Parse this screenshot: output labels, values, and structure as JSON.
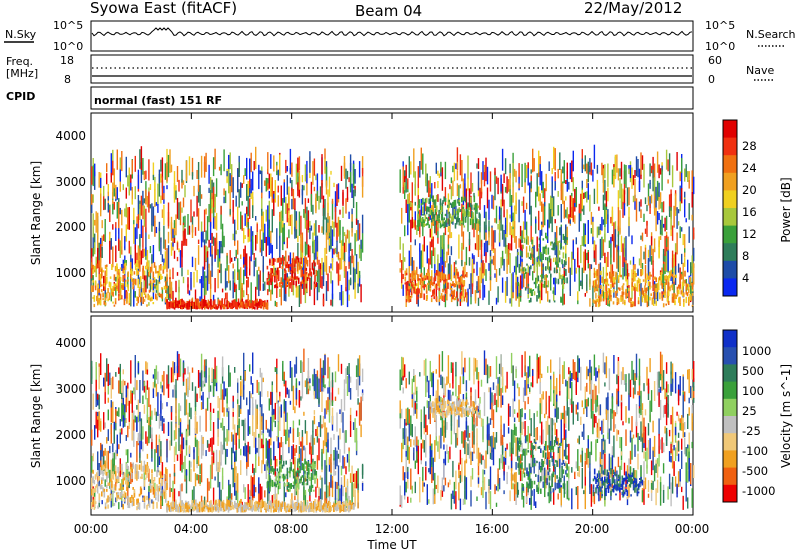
{
  "header": {
    "station": "Syowa East (fitACF)",
    "beam": "Beam 04",
    "date": "22/May/2012"
  },
  "noise_panel": {
    "left_label": "N.Sky",
    "right_label": "N.Search",
    "left_ticks": [
      "10^5",
      "10^0"
    ],
    "right_ticks": [
      "10^5",
      "10^0"
    ]
  },
  "freq_panel": {
    "left_label_line1": "Freq.",
    "left_label_line2": "[MHz]",
    "right_label": "Nave",
    "left_ticks": [
      "18",
      "8"
    ],
    "right_ticks": [
      "60",
      "0"
    ]
  },
  "cpid": {
    "label": "CPID",
    "mode": "normal (fast) 151 RF"
  },
  "time_axis": {
    "label": "Time UT",
    "ticks": [
      "00:00",
      "04:00",
      "08:00",
      "12:00",
      "16:00",
      "20:00",
      "00:00"
    ]
  },
  "colors": {
    "power": [
      "#0a28f0",
      "#1e4ca8",
      "#2e7d5a",
      "#3aa03a",
      "#a8c83c",
      "#f0d020",
      "#f0a020",
      "#f07010",
      "#f03010",
      "#e00000"
    ],
    "velocity": [
      "#ee0000",
      "#f06010",
      "#f0a020",
      "#f0c878",
      "#c0c0c0",
      "#90d060",
      "#3aa03a",
      "#2e7d5a",
      "#2850b0",
      "#1030c8"
    ]
  },
  "chart_data": [
    {
      "type": "heatmap",
      "title": "Power",
      "xlabel": "Time UT",
      "ylabel": "Slant Range [km]",
      "xlim": [
        0,
        24
      ],
      "ylim": [
        200,
        4500
      ],
      "y_ticks": [
        "1000",
        "2000",
        "3000",
        "4000"
      ],
      "colorbar": {
        "label": "Power [dB]",
        "range": [
          0,
          32
        ],
        "ticks": [
          "4",
          "8",
          "12",
          "16",
          "20",
          "24",
          "28"
        ]
      },
      "features": [
        {
          "time_range": [
            0,
            3
          ],
          "range_km": [
            300,
            1200
          ],
          "value_db": 20
        },
        {
          "time_range": [
            3,
            7
          ],
          "range_km": [
            250,
            350
          ],
          "value_db": 28
        },
        {
          "time_range": [
            7,
            9
          ],
          "range_km": [
            700,
            1300
          ],
          "value_db": 28
        },
        {
          "time_range": [
            12.5,
            15
          ],
          "range_km": [
            400,
            1000
          ],
          "value_db": 24
        },
        {
          "time_range": [
            13,
            15.5
          ],
          "range_km": [
            2000,
            2600
          ],
          "value_db": 12
        },
        {
          "time_range": [
            17,
            19
          ],
          "range_km": [
            400,
            1800
          ],
          "value_db": 12
        },
        {
          "time_range": [
            20,
            24
          ],
          "range_km": [
            300,
            1000
          ],
          "value_db": 20
        }
      ]
    },
    {
      "type": "heatmap",
      "title": "Velocity",
      "xlabel": "Time UT",
      "ylabel": "Slant Range [km]",
      "xlim": [
        0,
        24
      ],
      "ylim": [
        200,
        4500
      ],
      "y_ticks": [
        "1000",
        "2000",
        "3000",
        "4000"
      ],
      "colorbar": {
        "label": "Velocity [m s^-1]",
        "range": [
          -1200,
          1200
        ],
        "ticks": [
          "-1000",
          "-500",
          "-100",
          "-25",
          "25",
          "100",
          "500",
          "1000"
        ]
      },
      "features": [
        {
          "time_range": [
            0,
            3
          ],
          "range_km": [
            300,
            1200
          ],
          "value_ms": -200
        },
        {
          "time_range": [
            3,
            10.5
          ],
          "range_km": [
            250,
            400
          ],
          "value_ms": -300
        },
        {
          "time_range": [
            7,
            9
          ],
          "range_km": [
            700,
            1300
          ],
          "value_ms": 100
        },
        {
          "time_range": [
            13.5,
            15.5
          ],
          "range_km": [
            2300,
            2600
          ],
          "value_ms": -300
        },
        {
          "time_range": [
            17,
            19
          ],
          "range_km": [
            600,
            1800
          ],
          "value_ms": 500
        },
        {
          "time_range": [
            20,
            22
          ],
          "range_km": [
            600,
            1100
          ],
          "value_ms": 800
        }
      ]
    }
  ]
}
